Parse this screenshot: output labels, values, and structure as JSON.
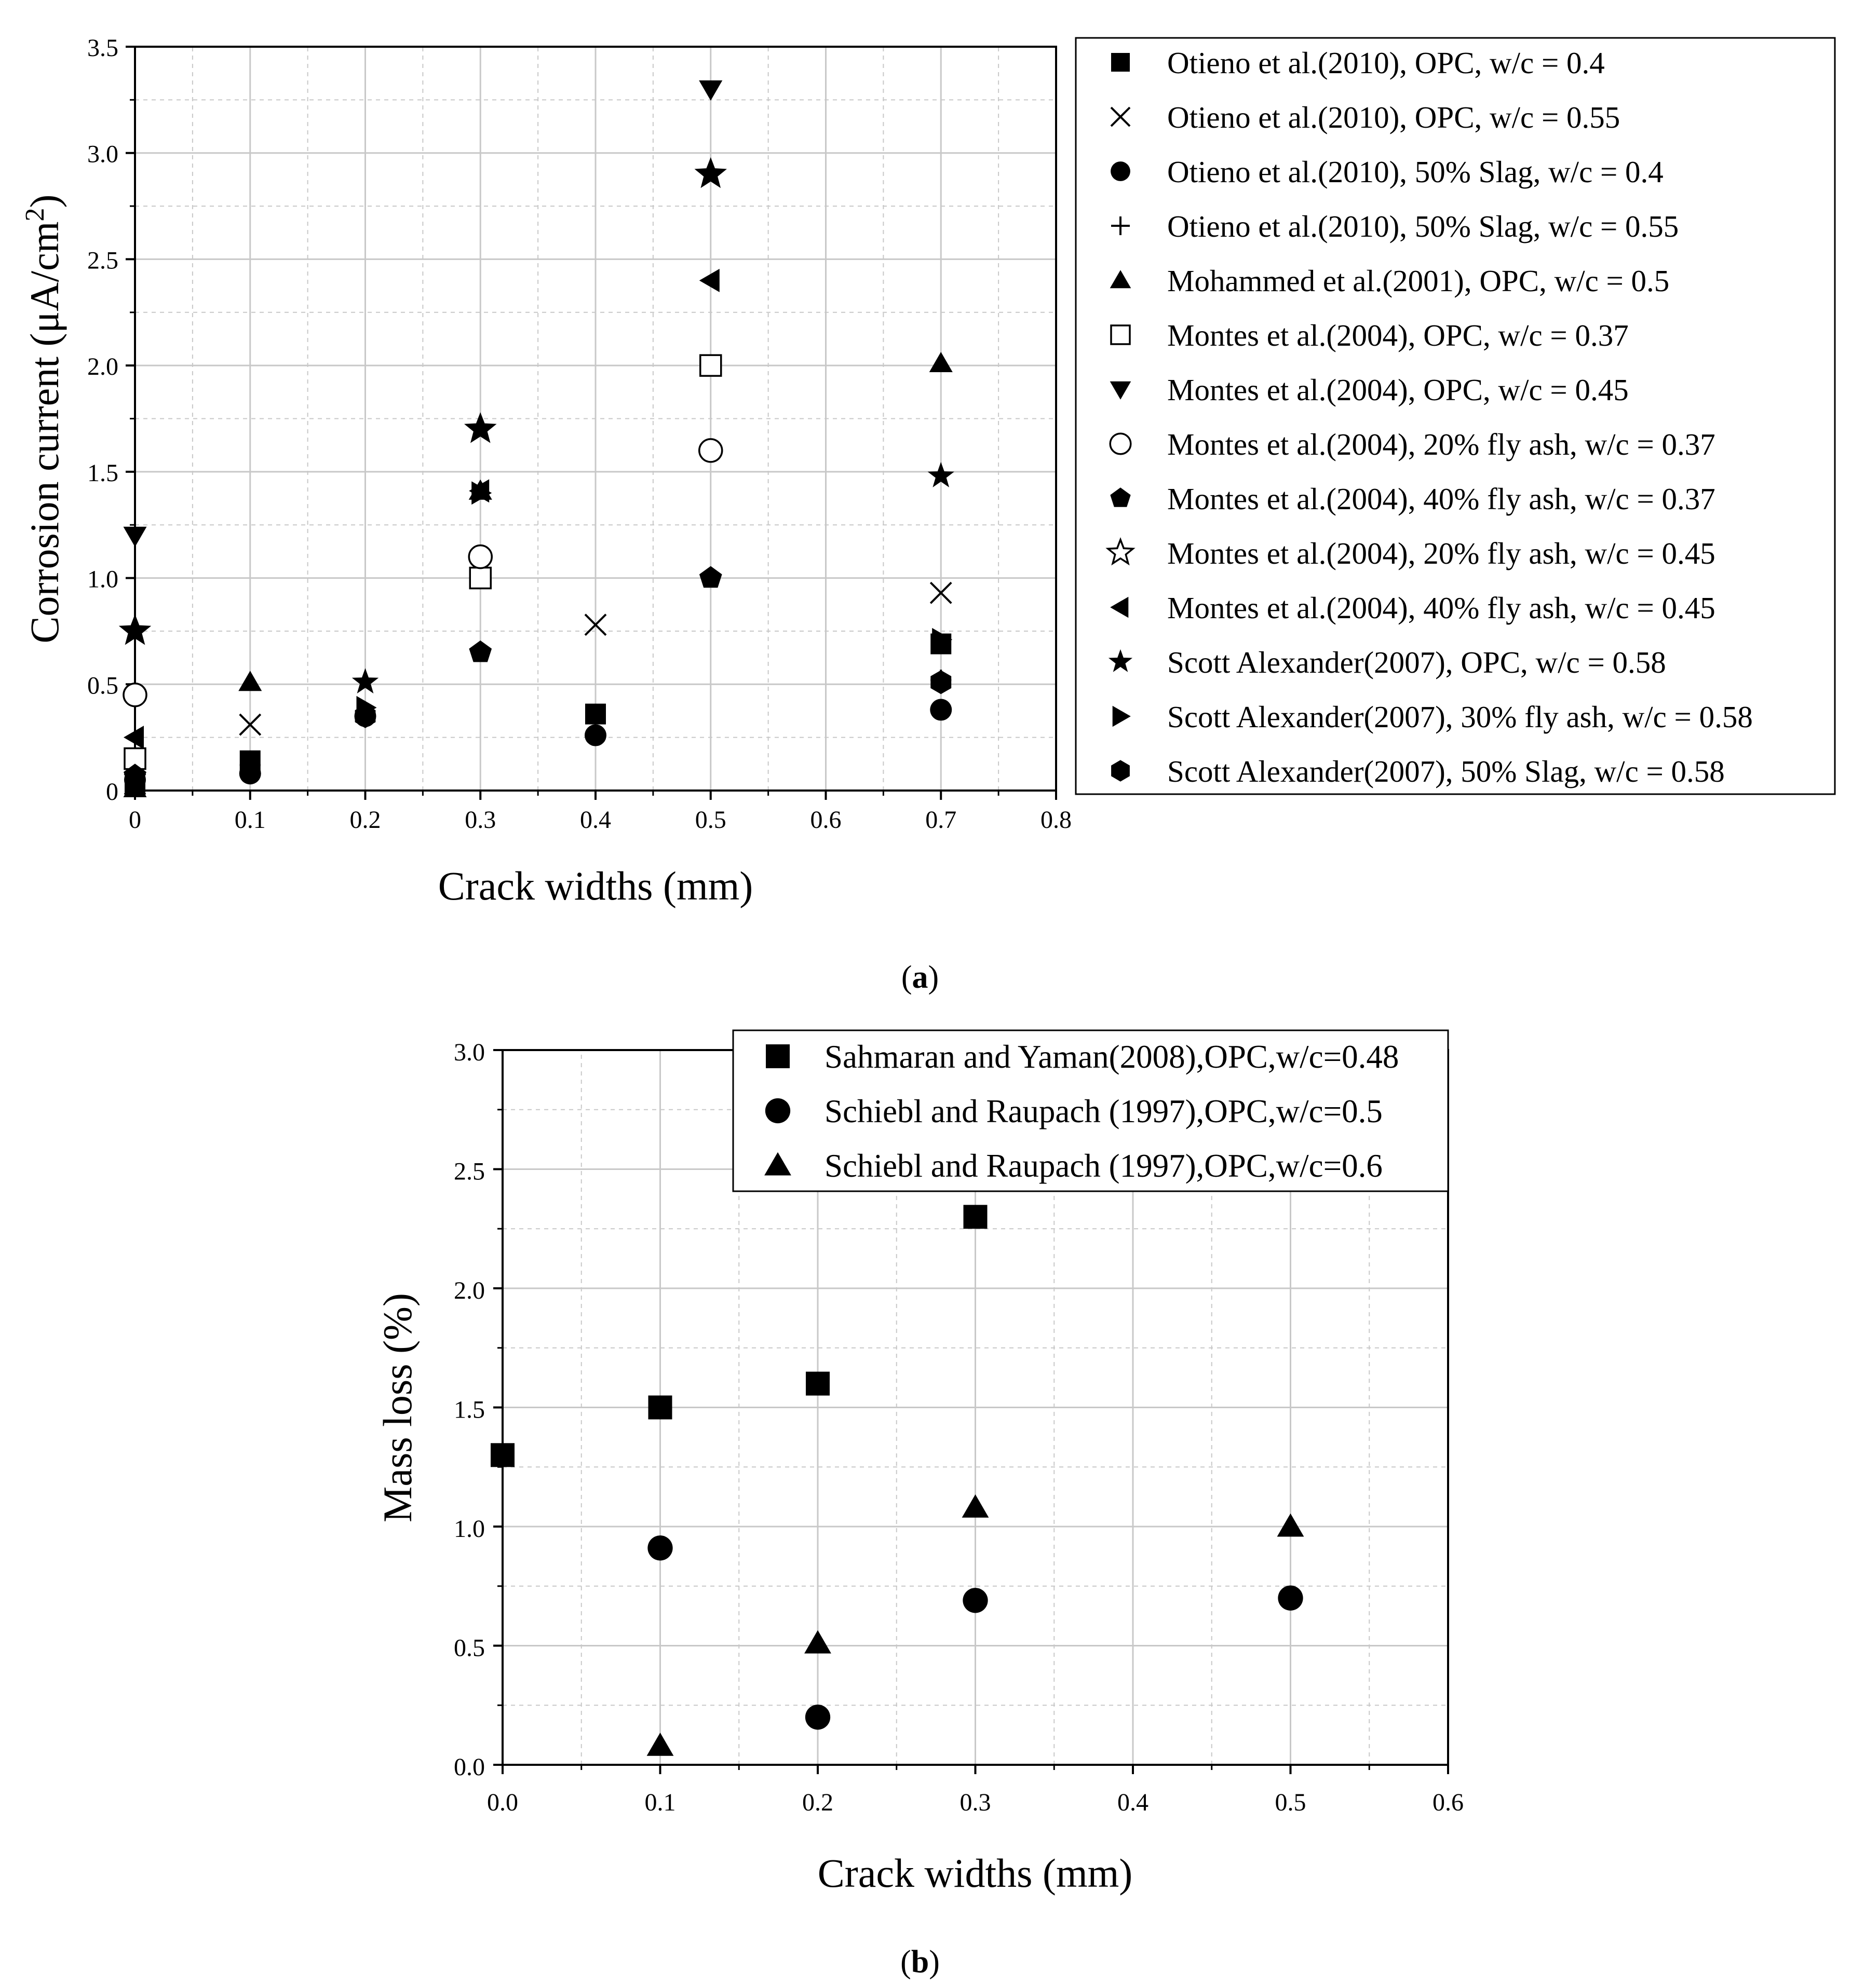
{
  "colors": {
    "marker": "#000000",
    "grid": "#c8c8c8",
    "axis": "#000000",
    "background": "#ffffff"
  },
  "chart_data": [
    {
      "id": "a",
      "type": "scatter",
      "caption": {
        "open": "(",
        "letter": "a",
        "close": ")"
      },
      "xlabel": "Crack widths (mm)",
      "ylabel": {
        "main": "Corrosion current (μA/cm",
        "sup": "2",
        "close": ")"
      },
      "xlim": [
        0,
        0.8
      ],
      "ylim": [
        0,
        3.5
      ],
      "xticks": [
        0,
        0.1,
        0.2,
        0.3,
        0.4,
        0.5,
        0.6,
        0.7,
        0.8
      ],
      "xtick_labels": [
        "0",
        "0.1",
        "0.2",
        "0.3",
        "0.4",
        "0.5",
        "0.6",
        "0.7",
        "0.8"
      ],
      "yticks": [
        0,
        0.5,
        1.0,
        1.5,
        2.0,
        2.5,
        3.0,
        3.5
      ],
      "ytick_labels": [
        "0",
        "0.5",
        "1.0",
        "1.5",
        "2.0",
        "2.5",
        "3.0",
        "3.5"
      ],
      "grid": true,
      "legend_position": "right",
      "series": [
        {
          "name": "Otieno et al.(2010), OPC, w/c = 0.4",
          "marker": "square",
          "points": [
            [
              0,
              0.02
            ],
            [
              0.1,
              0.14
            ],
            [
              0.4,
              0.36
            ],
            [
              0.7,
              0.69
            ]
          ]
        },
        {
          "name": "Otieno et al.(2010), OPC, w/c = 0.55",
          "marker": "x",
          "points": [
            [
              0,
              0.03
            ],
            [
              0.1,
              0.31
            ],
            [
              0.4,
              0.78
            ],
            [
              0.7,
              0.93
            ]
          ]
        },
        {
          "name": "Otieno et al.(2010), 50% Slag, w/c = 0.4",
          "marker": "circle",
          "points": [
            [
              0,
              0.05
            ],
            [
              0.1,
              0.08
            ],
            [
              0.2,
              0.35
            ],
            [
              0.4,
              0.26
            ],
            [
              0.7,
              0.38
            ]
          ]
        },
        {
          "name": "Otieno et al.(2010), 50% Slag, w/c = 0.55",
          "marker": "plus",
          "points": [
            [
              0,
              0.04
            ],
            [
              0.1,
              0.12
            ],
            [
              0.7,
              0.52
            ]
          ]
        },
        {
          "name": "Mohammed et al.(2001), OPC, w/c = 0.5",
          "marker": "triangle-up",
          "points": [
            [
              0,
              0.01
            ],
            [
              0.1,
              0.51
            ],
            [
              0.3,
              1.41
            ],
            [
              0.7,
              2.01
            ]
          ]
        },
        {
          "name": "Montes et al.(2004), OPC, w/c = 0.37",
          "marker": "square-open",
          "points": [
            [
              0,
              0.15
            ],
            [
              0.3,
              1.0
            ],
            [
              0.5,
              2.0
            ]
          ]
        },
        {
          "name": "Montes et al.(2004), OPC, w/c = 0.45",
          "marker": "triangle-down",
          "points": [
            [
              0,
              1.2
            ],
            [
              0.5,
              3.3
            ]
          ]
        },
        {
          "name": "Montes et al.(2004), 20% fly ash, w/c = 0.37",
          "marker": "circle-open",
          "points": [
            [
              0,
              0.45
            ],
            [
              0.3,
              1.1
            ],
            [
              0.5,
              1.6
            ]
          ]
        },
        {
          "name": "Montes et al.(2004), 40% fly ash, w/c = 0.37",
          "marker": "pentagon",
          "points": [
            [
              0,
              0.07
            ],
            [
              0.3,
              0.65
            ],
            [
              0.5,
              1.0
            ]
          ]
        },
        {
          "name": "Montes et al.(2004), 20% fly ash, w/c = 0.45",
          "marker": "star-open",
          "points": [
            [
              0,
              0.75
            ],
            [
              0.3,
              1.7
            ],
            [
              0.5,
              2.9
            ]
          ]
        },
        {
          "name": "Montes et al.(2004), 40% fly ash, w/c = 0.45",
          "marker": "triangle-left",
          "points": [
            [
              0,
              0.25
            ],
            [
              0.3,
              1.41
            ],
            [
              0.5,
              2.4
            ]
          ]
        },
        {
          "name": "Scott Alexander(2007), OPC, w/c = 0.58",
          "marker": "star",
          "points": [
            [
              0,
              0.75
            ],
            [
              0.2,
              0.51
            ],
            [
              0.3,
              1.7
            ],
            [
              0.5,
              2.9
            ],
            [
              0.7,
              1.48
            ]
          ]
        },
        {
          "name": "Scott Alexander(2007), 30% fly ash, w/c = 0.58",
          "marker": "triangle-right",
          "points": [
            [
              0.2,
              0.39
            ],
            [
              0.3,
              1.4
            ],
            [
              0.7,
              0.71
            ]
          ]
        },
        {
          "name": "Scott Alexander(2007), 50% Slag, w/c = 0.58",
          "marker": "hexagon",
          "points": [
            [
              0,
              0.04
            ],
            [
              0.2,
              0.35
            ],
            [
              0.7,
              0.51
            ]
          ]
        }
      ]
    },
    {
      "id": "b",
      "type": "scatter",
      "caption": {
        "open": "(",
        "letter": "b",
        "close": ")"
      },
      "xlabel": "Crack widths (mm)",
      "ylabel": {
        "main": "Mass loss (%)"
      },
      "xlim": [
        0,
        0.6
      ],
      "ylim": [
        0,
        3.0
      ],
      "xticks": [
        0,
        0.1,
        0.2,
        0.3,
        0.4,
        0.5,
        0.6
      ],
      "xtick_labels": [
        "0.0",
        "0.1",
        "0.2",
        "0.3",
        "0.4",
        "0.5",
        "0.6"
      ],
      "yticks": [
        0,
        0.5,
        1.0,
        1.5,
        2.0,
        2.5,
        3.0
      ],
      "ytick_labels": [
        "0.0",
        "0.5",
        "1.0",
        "1.5",
        "2.0",
        "2.5",
        "3.0"
      ],
      "grid": true,
      "legend_position": "top-right",
      "series": [
        {
          "name": "Sahmaran and Yaman(2008),OPC,w/c=0.48",
          "marker": "square",
          "points": [
            [
              0,
              1.3
            ],
            [
              0.1,
              1.5
            ],
            [
              0.2,
              1.6
            ],
            [
              0.3,
              2.3
            ]
          ]
        },
        {
          "name": "Schiebl and Raupach (1997),OPC,w/c=0.5",
          "marker": "circle",
          "points": [
            [
              0.1,
              0.91
            ],
            [
              0.2,
              0.2
            ],
            [
              0.3,
              0.69
            ],
            [
              0.5,
              0.7
            ]
          ]
        },
        {
          "name": "Schiebl and Raupach (1997),OPC,w/c=0.6",
          "marker": "triangle-up",
          "points": [
            [
              0.1,
              0.08
            ],
            [
              0.2,
              0.51
            ],
            [
              0.3,
              1.08
            ],
            [
              0.5,
              1.0
            ]
          ]
        }
      ]
    }
  ]
}
